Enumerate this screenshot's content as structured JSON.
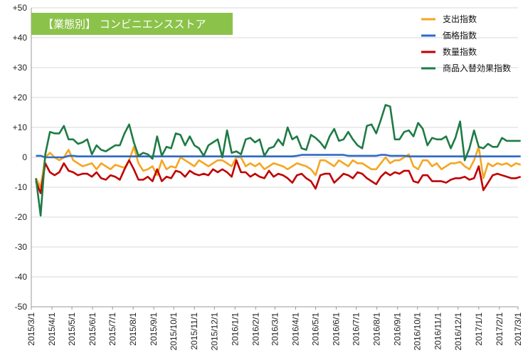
{
  "chart_data": {
    "type": "line",
    "title": "【業態別】 コンビニエンスストア",
    "title_bg_color": "#8BC34A",
    "ylim": [
      -50,
      50
    ],
    "yticks": [
      "+50",
      "+40",
      "+30",
      "+20",
      "+10",
      "0",
      "-10",
      "-20",
      "-30",
      "-40",
      "-50"
    ],
    "ytick_values": [
      50,
      40,
      30,
      20,
      10,
      0,
      -10,
      -20,
      -30,
      -40,
      -50
    ],
    "x_start": "2015-03-01",
    "x_end": "2017-03-01",
    "xticks": [
      "2015/3/1",
      "2015/4/1",
      "2015/5/1",
      "2015/6/1",
      "2015/7/1",
      "2015/8/1",
      "2015/9/1",
      "2015/10/1",
      "2015/11/1",
      "2015/12/1",
      "2016/1/1",
      "2016/2/1",
      "2016/3/1",
      "2016/4/1",
      "2016/5/1",
      "2016/6/1",
      "2016/7/1",
      "2016/8/1",
      "2016/9/1",
      "2016/10/1",
      "2016/11/1",
      "2016/12/1",
      "2017/1/1",
      "2017/2/1",
      "2017/3/1"
    ],
    "grid": true,
    "legend_position": "top-right",
    "x": [
      "2015-03-08",
      "2015-03-15",
      "2015-03-22",
      "2015-03-29",
      "2015-04-05",
      "2015-04-12",
      "2015-04-19",
      "2015-04-26",
      "2015-05-03",
      "2015-05-10",
      "2015-05-17",
      "2015-05-24",
      "2015-05-31",
      "2015-06-07",
      "2015-06-14",
      "2015-06-21",
      "2015-06-28",
      "2015-07-05",
      "2015-07-12",
      "2015-07-19",
      "2015-07-26",
      "2015-08-02",
      "2015-08-09",
      "2015-08-16",
      "2015-08-23",
      "2015-08-30",
      "2015-09-06",
      "2015-09-13",
      "2015-09-20",
      "2015-09-27",
      "2015-10-04",
      "2015-10-11",
      "2015-10-18",
      "2015-10-25",
      "2015-11-01",
      "2015-11-08",
      "2015-11-15",
      "2015-11-22",
      "2015-11-29",
      "2015-12-06",
      "2015-12-13",
      "2015-12-20",
      "2015-12-27",
      "2016-01-03",
      "2016-01-10",
      "2016-01-17",
      "2016-01-24",
      "2016-01-31",
      "2016-02-07",
      "2016-02-14",
      "2016-02-21",
      "2016-02-28",
      "2016-03-06",
      "2016-03-13",
      "2016-03-20",
      "2016-03-27",
      "2016-04-03",
      "2016-04-10",
      "2016-04-17",
      "2016-04-24",
      "2016-05-01",
      "2016-05-08",
      "2016-05-15",
      "2016-05-22",
      "2016-05-29",
      "2016-06-05",
      "2016-06-12",
      "2016-06-19",
      "2016-06-26",
      "2016-07-03",
      "2016-07-10",
      "2016-07-17",
      "2016-07-24",
      "2016-07-31",
      "2016-08-07",
      "2016-08-14",
      "2016-08-21",
      "2016-08-28",
      "2016-09-04",
      "2016-09-11",
      "2016-09-18",
      "2016-09-25",
      "2016-10-02",
      "2016-10-09",
      "2016-10-16",
      "2016-10-23",
      "2016-10-30",
      "2016-11-06",
      "2016-11-13",
      "2016-11-20",
      "2016-11-27",
      "2016-12-04",
      "2016-12-11",
      "2016-12-18",
      "2016-12-25",
      "2017-01-01",
      "2017-01-08",
      "2017-01-15",
      "2017-01-22",
      "2017-01-29",
      "2017-02-05",
      "2017-02-12",
      "2017-02-19",
      "2017-02-26",
      "2017-03-05"
    ],
    "series": [
      {
        "name": "支出指数",
        "color": "#F5A623",
        "values": [
          -7,
          -10,
          0,
          1.5,
          0,
          -1,
          0,
          2.5,
          -1,
          -2,
          -3,
          -2.5,
          -2,
          -4,
          -2,
          -3,
          -4,
          -2.5,
          -3,
          -3.5,
          -1,
          3.5,
          -2,
          -4.5,
          -4,
          -3,
          -6,
          -1,
          -4,
          -3,
          -3.5,
          0,
          -1,
          -2,
          -3,
          -1,
          -2,
          -3,
          -2,
          -1,
          -1,
          -2,
          -3,
          0,
          0,
          -3,
          -2,
          -3,
          -2,
          -4,
          -3,
          -2,
          -2.5,
          -3,
          -4,
          -3,
          -2,
          -2.5,
          -3,
          -4,
          -6,
          -1,
          -1,
          -2,
          -3,
          -1,
          -2,
          -3,
          -1,
          -2,
          -2,
          -3,
          -4,
          -4,
          -2,
          0,
          -2,
          -1,
          -1,
          0,
          1,
          -3,
          -4,
          -1,
          -1,
          -3,
          -2,
          -4,
          -3,
          -2,
          -2,
          -1.5,
          -3,
          -4,
          -1,
          3.5,
          -7,
          -2,
          -3,
          -2,
          -2.5,
          -2,
          -3,
          -2,
          -2.5
        ]
      },
      {
        "name": "価格指数",
        "color": "#2E6BC6",
        "values": [
          0.5,
          0.5,
          0,
          0,
          0,
          0,
          0,
          0.5,
          0.5,
          0.3,
          0.3,
          0.3,
          0.3,
          0.3,
          0.3,
          0.3,
          0.3,
          0.3,
          0.3,
          0.3,
          0.3,
          0.3,
          0.3,
          0.3,
          0.3,
          0.3,
          0.3,
          0.3,
          0.3,
          0.3,
          0.3,
          0.3,
          0.3,
          0.3,
          0.3,
          0.3,
          0.3,
          0.3,
          0.3,
          0.3,
          0.3,
          0.3,
          0.3,
          0.3,
          0.3,
          0.3,
          0.3,
          0.3,
          0.3,
          0.3,
          0.3,
          0.3,
          0.3,
          0.3,
          0.3,
          0.3,
          0.5,
          0.8,
          0.8,
          0.8,
          0.8,
          0.8,
          0.8,
          0.8,
          0.8,
          0.8,
          0.8,
          0.5,
          0.5,
          0.5,
          0.5,
          0.5,
          0.5,
          0.5,
          0.8,
          0.8,
          0.5,
          0.5,
          0.5,
          0.5,
          0.3,
          0.3,
          0.3,
          0.3,
          0.3,
          0.3,
          0.3,
          0.3,
          0.3,
          0.3,
          0.3,
          0.3,
          0.3,
          0.3,
          0.3,
          0.3,
          0.3,
          0.3,
          0.3,
          0.3,
          0.3,
          0.3,
          0.3,
          0.3,
          0.3
        ]
      },
      {
        "name": "数量指数",
        "color": "#C00000",
        "values": [
          -8,
          -12,
          -2,
          -5,
          -6,
          -5,
          -2,
          -4.5,
          -5,
          -6,
          -5.5,
          -5.5,
          -6.5,
          -5,
          -7,
          -7.5,
          -6,
          -6.5,
          -7.5,
          -4,
          -1,
          -4,
          -7.5,
          -7.5,
          -6.5,
          -8,
          -4,
          -8,
          -6.5,
          -7,
          -4.5,
          -5,
          -6.5,
          -4.5,
          -5.5,
          -6,
          -5.5,
          -6,
          -4,
          -5,
          -4,
          -5,
          -6.5,
          -1,
          -5,
          -5,
          -6.5,
          -5.5,
          -6.5,
          -7,
          -4.5,
          -6.5,
          -5.5,
          -6,
          -7,
          -8.5,
          -6,
          -5.5,
          -7,
          -8,
          -10.5,
          -6,
          -5.5,
          -5.5,
          -8.5,
          -7,
          -5.5,
          -6,
          -7,
          -5,
          -5.5,
          -7,
          -8,
          -9,
          -6.5,
          -5,
          -6,
          -5,
          -5.5,
          -4.5,
          -4.5,
          -8,
          -8.5,
          -6,
          -6,
          -8,
          -8,
          -8,
          -8.5,
          -7.5,
          -7,
          -7,
          -6.5,
          -7.5,
          -7,
          -3,
          -11,
          -8.5,
          -6,
          -5.5,
          -6,
          -6.5,
          -7,
          -7,
          -6.5
        ]
      },
      {
        "name": "商品入替効果指数",
        "color": "#1E7B45",
        "values": [
          -7,
          -19.5,
          1,
          8.5,
          8,
          8,
          10.5,
          6,
          6,
          4.5,
          5,
          6,
          1,
          4,
          2.5,
          2,
          3,
          4,
          4,
          8,
          11,
          5,
          0.5,
          1.5,
          1,
          -0.5,
          7,
          0.5,
          3.5,
          3,
          8,
          7.5,
          4,
          7,
          4,
          3,
          0.5,
          4,
          5,
          6,
          0,
          9,
          1.5,
          2,
          1,
          6,
          6.5,
          5,
          6,
          0.5,
          3,
          3.5,
          6,
          4,
          10,
          6,
          7,
          3,
          2.5,
          7.5,
          6.5,
          5,
          3,
          7,
          9.5,
          5.5,
          6,
          8.5,
          6,
          4,
          3,
          10.5,
          11,
          8,
          12.5,
          17.5,
          17,
          6,
          6,
          8.5,
          9,
          7,
          11.5,
          9.5,
          4,
          6.5,
          6,
          6,
          7,
          3,
          6.5,
          12,
          -1,
          3,
          9,
          3.5,
          3,
          4.5,
          3.5,
          3.5,
          6.5,
          5.5,
          5.5,
          5.5,
          5.5
        ]
      }
    ]
  }
}
